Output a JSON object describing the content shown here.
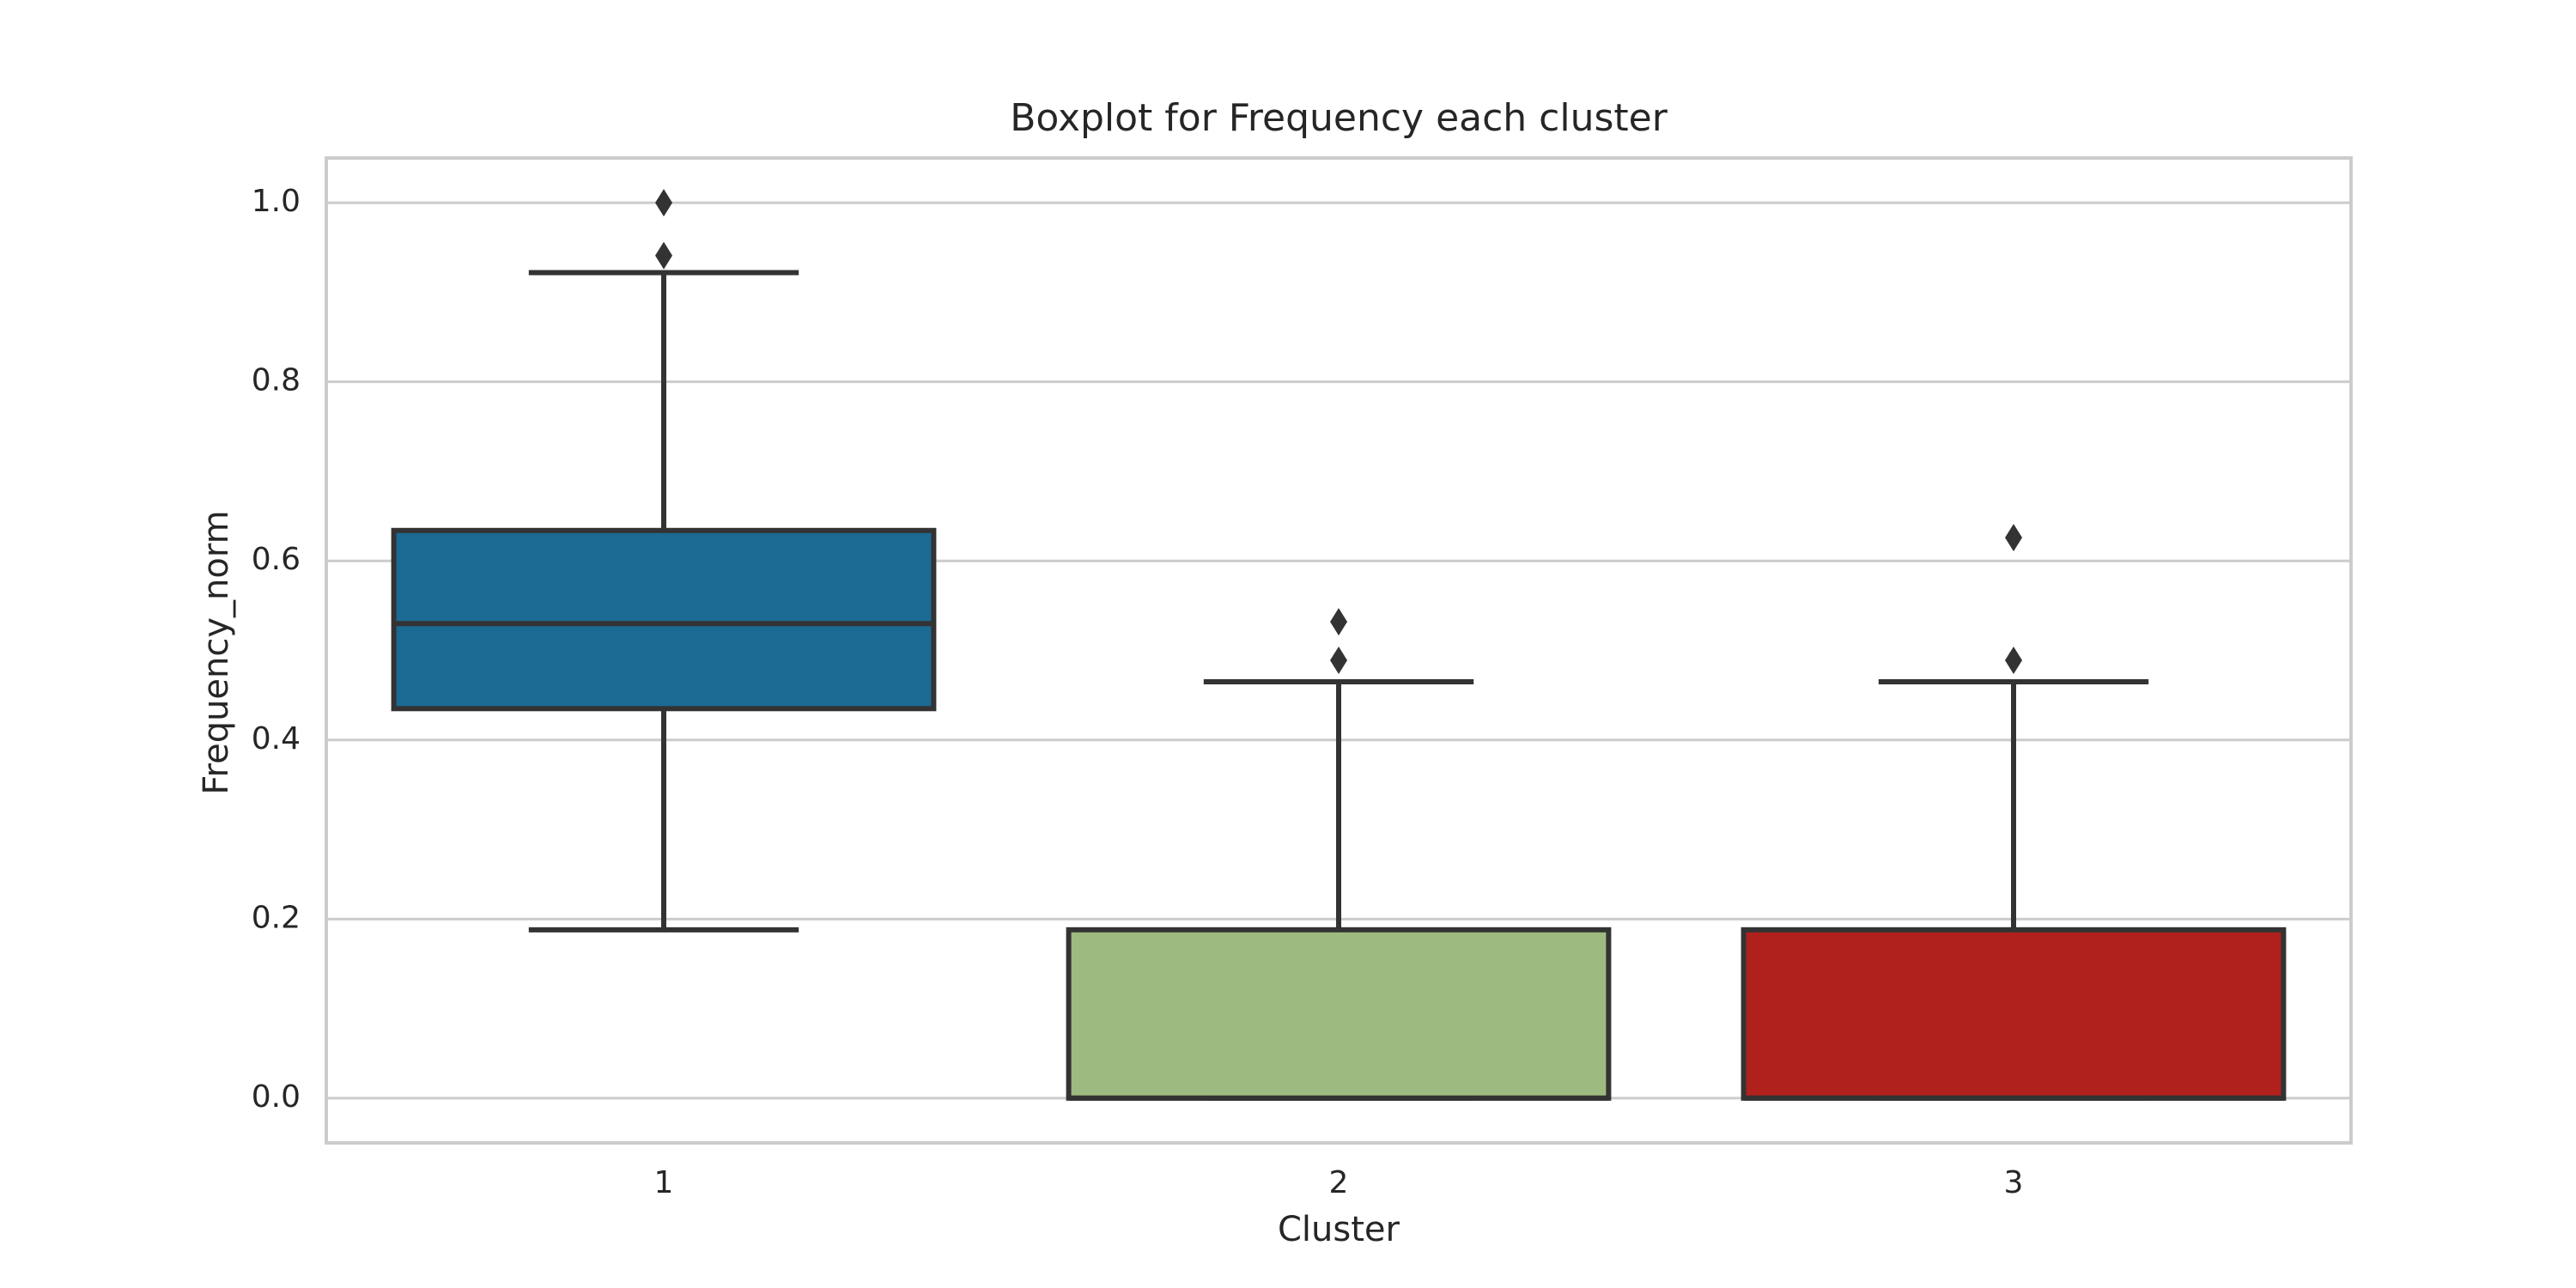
{
  "chart_data": {
    "type": "box",
    "title": "Boxplot for Frequency each cluster",
    "x_label": "Cluster",
    "y_label": "Frequency_norm",
    "categories": [
      "1",
      "2",
      "3"
    ],
    "boxes": [
      {
        "color": "#1b6a93",
        "whislo": 0.188,
        "q1": 0.435,
        "med": 0.53,
        "q3": 0.634,
        "whishi": 0.922,
        "fliers": [
          0.941,
          1.0
        ]
      },
      {
        "color": "#9dbb80",
        "whislo": 0,
        "q1": 0,
        "med": 0,
        "q3": 0.188,
        "whishi": 0.465,
        "fliers": [
          0.489,
          0.532
        ]
      },
      {
        "color": "#b0211d",
        "whislo": 0,
        "q1": 0,
        "med": 0,
        "q3": 0.188,
        "whishi": 0.465,
        "fliers": [
          0.489,
          0.626
        ]
      }
    ],
    "ylim": [
      -0.05,
      1.05
    ],
    "yticks": [
      {
        "value": 0,
        "label": "0.0"
      },
      0.2,
      0.4,
      0.6,
      0.8,
      {
        "value": 1,
        "label": "1.0"
      }
    ],
    "grid": true
  }
}
